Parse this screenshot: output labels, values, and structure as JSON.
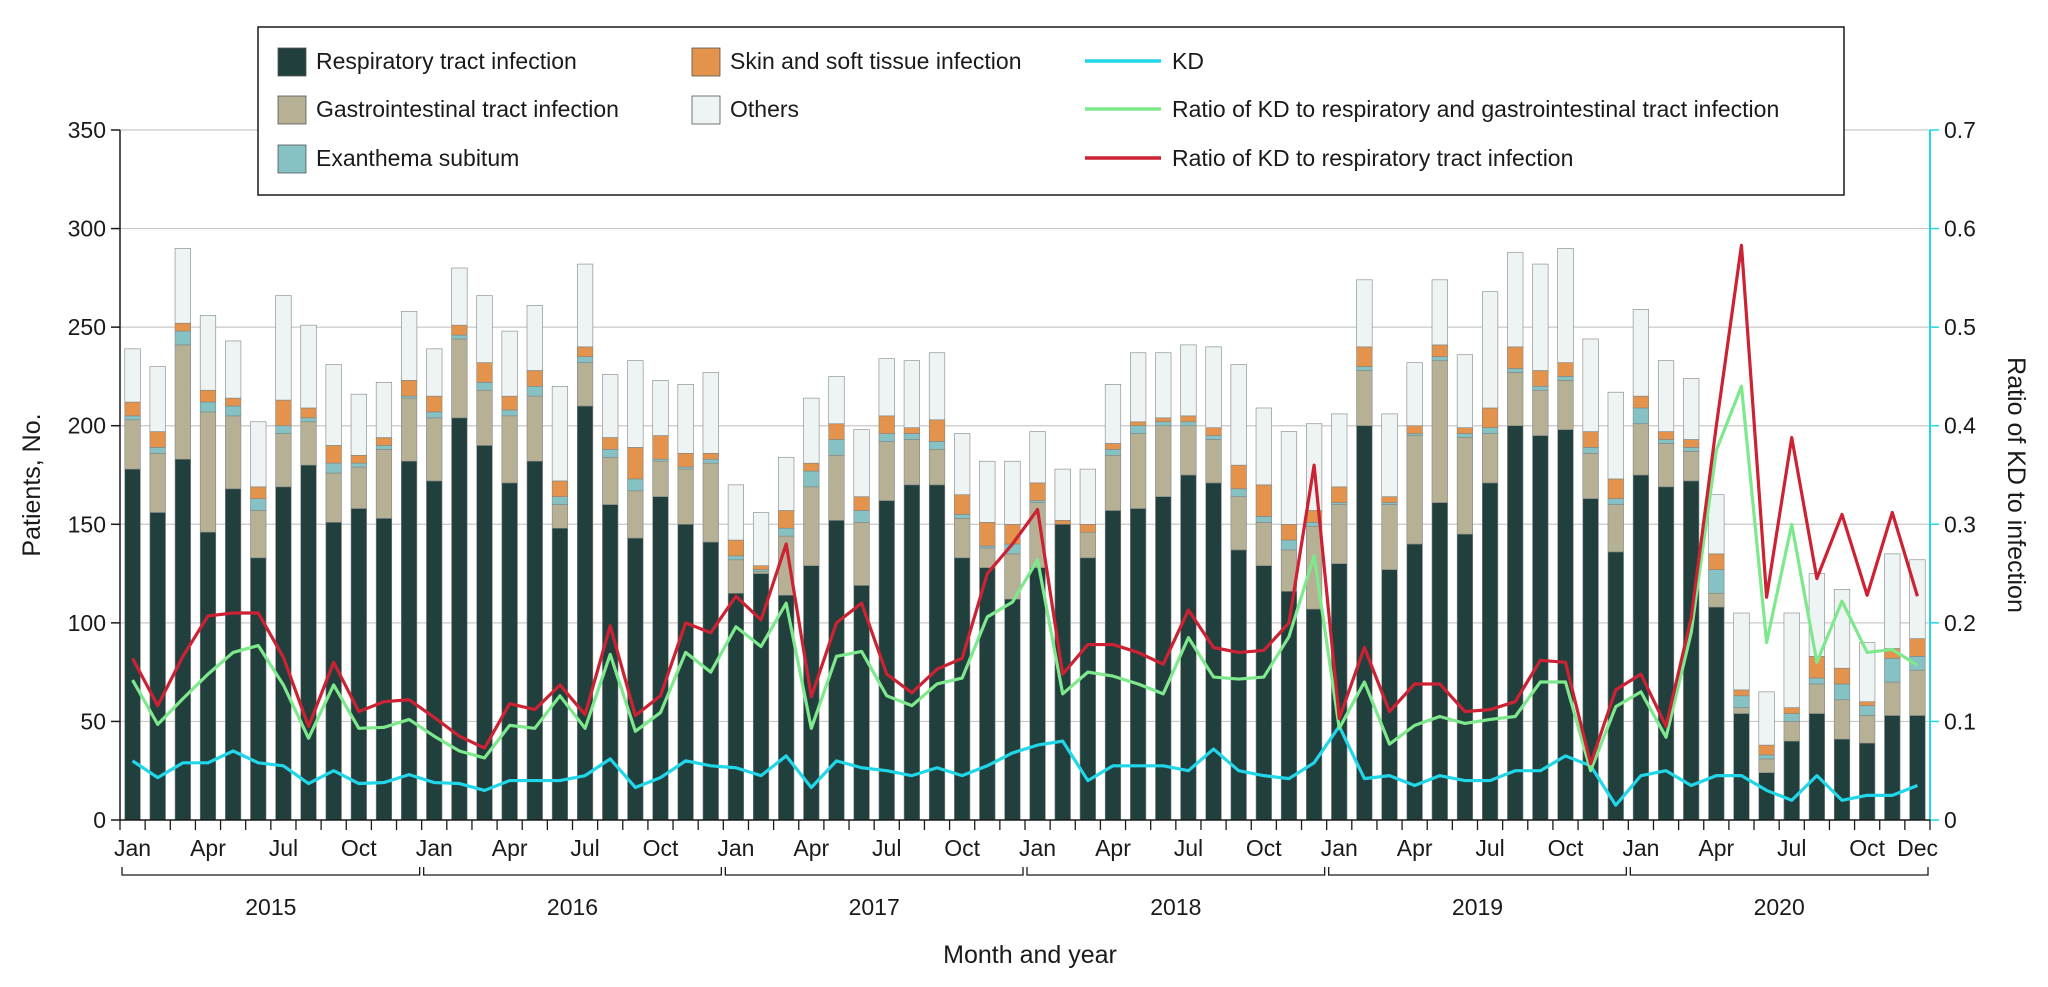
{
  "chart_data": {
    "type": "bar",
    "stacked": true,
    "xlabel": "Month and year",
    "ylabel": "Patients, No.",
    "ylabel_right": "Ratio of KD to infection",
    "ylim": [
      0,
      350
    ],
    "ylim_right": [
      0,
      0.7
    ],
    "yticks": [
      "0",
      "50",
      "100",
      "150",
      "200",
      "250",
      "300",
      "350"
    ],
    "yticks_right": [
      "0",
      "0.1",
      "0.2",
      "0.3",
      "0.4",
      "0.5",
      "0.6",
      "0.7"
    ],
    "month_ticks": [
      {
        "index": 0,
        "label": "Jan"
      },
      {
        "index": 3,
        "label": "Apr"
      },
      {
        "index": 6,
        "label": "Jul"
      },
      {
        "index": 9,
        "label": "Oct"
      },
      {
        "index": 12,
        "label": "Jan"
      },
      {
        "index": 15,
        "label": "Apr"
      },
      {
        "index": 18,
        "label": "Jul"
      },
      {
        "index": 21,
        "label": "Oct"
      },
      {
        "index": 24,
        "label": "Jan"
      },
      {
        "index": 27,
        "label": "Apr"
      },
      {
        "index": 30,
        "label": "Jul"
      },
      {
        "index": 33,
        "label": "Oct"
      },
      {
        "index": 36,
        "label": "Jan"
      },
      {
        "index": 39,
        "label": "Apr"
      },
      {
        "index": 42,
        "label": "Jul"
      },
      {
        "index": 45,
        "label": "Oct"
      },
      {
        "index": 48,
        "label": "Jan"
      },
      {
        "index": 51,
        "label": "Apr"
      },
      {
        "index": 54,
        "label": "Jul"
      },
      {
        "index": 57,
        "label": "Oct"
      },
      {
        "index": 60,
        "label": "Jan"
      },
      {
        "index": 63,
        "label": "Apr"
      },
      {
        "index": 66,
        "label": "Jul"
      },
      {
        "index": 69,
        "label": "Oct"
      },
      {
        "index": 71,
        "label": "Dec"
      }
    ],
    "years": [
      {
        "label": "2015",
        "start": 0,
        "end": 11
      },
      {
        "label": "2016",
        "start": 12,
        "end": 23
      },
      {
        "label": "2017",
        "start": 24,
        "end": 35
      },
      {
        "label": "2018",
        "start": 36,
        "end": 47
      },
      {
        "label": "2019",
        "start": 48,
        "end": 59
      },
      {
        "label": "2020",
        "start": 60,
        "end": 71
      }
    ],
    "legend": {
      "resp": "Respiratory tract infection",
      "gi": "Gastrointestinal tract infection",
      "exanthema": "Exanthema subitum",
      "skin": "Skin and soft tissue infection",
      "others": "Others",
      "kd": "KD",
      "ratio_rg": "Ratio of KD to respiratory and gastrointestinal tract infection",
      "ratio_r": "Ratio of KD to respiratory tract infection"
    },
    "colors": {
      "resp": "#213f3c",
      "gi": "#b6b195",
      "exanthema": "#86c1c3",
      "skin": "#e3934b",
      "others": "#eef3f3",
      "kd": "#21d6e8",
      "ratio_rg": "#7ee88c",
      "ratio_r": "#cc2233",
      "grid": "#c8c8c8",
      "right_axis": "#21d6e8"
    },
    "series": [
      {
        "name": "Respiratory tract infection",
        "key": "resp",
        "values": [
          178,
          156,
          183,
          146,
          168,
          133,
          169,
          180,
          151,
          158,
          153,
          182,
          172,
          204,
          190,
          171,
          182,
          148,
          210,
          160,
          143,
          164,
          150,
          141,
          115,
          125,
          114,
          129,
          152,
          119,
          162,
          170,
          170,
          133,
          128,
          112,
          128,
          150,
          133,
          157,
          158,
          164,
          175,
          171,
          137,
          129,
          116,
          107,
          130,
          200,
          127,
          140,
          161,
          145,
          171,
          200,
          195,
          198,
          163,
          136,
          175,
          169,
          172,
          108,
          54,
          24,
          40,
          54,
          41,
          39,
          53,
          53
        ]
      },
      {
        "name": "Gastrointestinal tract infection",
        "key": "gi",
        "values": [
          25,
          30,
          58,
          61,
          37,
          24,
          27,
          22,
          25,
          21,
          35,
          32,
          32,
          40,
          28,
          34,
          33,
          12,
          22,
          24,
          24,
          18,
          28,
          40,
          17,
          1,
          30,
          40,
          33,
          32,
          30,
          23,
          18,
          20,
          10,
          23,
          33,
          0,
          13,
          28,
          38,
          36,
          25,
          22,
          27,
          22,
          21,
          42,
          30,
          28,
          33,
          55,
          72,
          49,
          25,
          27,
          23,
          25,
          23,
          24,
          26,
          22,
          15,
          7,
          3,
          7,
          10,
          15,
          20,
          14,
          17,
          23
        ]
      },
      {
        "name": "Exanthema subitum",
        "key": "exanthema",
        "values": [
          2,
          3,
          7,
          5,
          5,
          6,
          4,
          2,
          5,
          2,
          2,
          1,
          3,
          2,
          4,
          3,
          5,
          4,
          3,
          4,
          6,
          1,
          1,
          2,
          2,
          1,
          4,
          8,
          8,
          6,
          4,
          3,
          4,
          2,
          1,
          5,
          1,
          0,
          0,
          3,
          4,
          2,
          2,
          2,
          4,
          3,
          5,
          2,
          1,
          2,
          1,
          1,
          2,
          2,
          3,
          2,
          2,
          2,
          3,
          3,
          8,
          2,
          2,
          12,
          6,
          2,
          4,
          3,
          8,
          5,
          12,
          7
        ]
      },
      {
        "name": "Skin and soft tissue infection",
        "key": "skin",
        "values": [
          7,
          8,
          4,
          6,
          4,
          6,
          13,
          5,
          9,
          4,
          4,
          8,
          8,
          5,
          10,
          7,
          8,
          8,
          5,
          6,
          16,
          12,
          7,
          3,
          8,
          2,
          9,
          4,
          8,
          7,
          9,
          3,
          11,
          10,
          12,
          10,
          9,
          2,
          4,
          3,
          2,
          2,
          3,
          4,
          12,
          16,
          8,
          6,
          8,
          10,
          3,
          4,
          6,
          3,
          10,
          11,
          8,
          7,
          8,
          10,
          6,
          4,
          4,
          8,
          3,
          5,
          3,
          11,
          8,
          2,
          5,
          9
        ]
      },
      {
        "name": "Others",
        "key": "others",
        "values": [
          27,
          33,
          38,
          38,
          29,
          33,
          53,
          42,
          41,
          31,
          28,
          35,
          24,
          29,
          34,
          33,
          33,
          48,
          42,
          32,
          44,
          28,
          35,
          41,
          28,
          27,
          27,
          33,
          24,
          34,
          29,
          34,
          34,
          31,
          31,
          32,
          26,
          26,
          28,
          30,
          35,
          33,
          36,
          41,
          51,
          39,
          47,
          44,
          37,
          34,
          42,
          32,
          33,
          37,
          59,
          48,
          54,
          58,
          47,
          44,
          44,
          36,
          31,
          30,
          39,
          27,
          48,
          42,
          40,
          30,
          48,
          40
        ]
      }
    ],
    "lines": [
      {
        "name": "KD",
        "key": "kd",
        "axis": "right",
        "values": [
          0.06,
          0.043,
          0.058,
          0.058,
          0.07,
          0.058,
          0.055,
          0.037,
          0.05,
          0.037,
          0.038,
          0.046,
          0.038,
          0.037,
          0.03,
          0.04,
          0.04,
          0.04,
          0.045,
          0.062,
          0.033,
          0.043,
          0.06,
          0.055,
          0.053,
          0.045,
          0.065,
          0.033,
          0.06,
          0.053,
          0.05,
          0.045,
          0.053,
          0.045,
          0.055,
          0.068,
          0.076,
          0.08,
          0.04,
          0.055,
          0.055,
          0.055,
          0.05,
          0.072,
          0.05,
          0.045,
          0.042,
          0.058,
          0.095,
          0.042,
          0.045,
          0.035,
          0.045,
          0.04,
          0.04,
          0.05,
          0.05,
          0.065,
          0.055,
          0.015,
          0.045,
          0.05,
          0.035,
          0.045,
          0.045,
          0.03,
          0.02,
          0.045,
          0.02,
          0.025,
          0.025,
          0.035
        ]
      },
      {
        "name": "Ratio of KD to respiratory and gastrointestinal tract infection",
        "key": "ratio_rg",
        "axis": "right",
        "values": [
          0.142,
          0.097,
          0.123,
          0.148,
          0.17,
          0.177,
          0.137,
          0.083,
          0.137,
          0.093,
          0.094,
          0.102,
          0.085,
          0.07,
          0.063,
          0.096,
          0.093,
          0.126,
          0.093,
          0.168,
          0.09,
          0.109,
          0.17,
          0.15,
          0.196,
          0.176,
          0.22,
          0.093,
          0.166,
          0.171,
          0.126,
          0.116,
          0.138,
          0.144,
          0.206,
          0.221,
          0.264,
          0.128,
          0.15,
          0.146,
          0.138,
          0.128,
          0.185,
          0.145,
          0.143,
          0.145,
          0.186,
          0.268,
          0.093,
          0.14,
          0.077,
          0.096,
          0.105,
          0.098,
          0.102,
          0.105,
          0.14,
          0.14,
          0.05,
          0.115,
          0.13,
          0.084,
          0.19,
          0.375,
          0.44,
          0.18,
          0.3,
          0.16,
          0.222,
          0.17,
          0.173,
          0.157
        ]
      },
      {
        "name": "Ratio of KD to respiratory tract infection",
        "key": "ratio_r",
        "axis": "right",
        "values": [
          0.164,
          0.116,
          0.166,
          0.207,
          0.21,
          0.21,
          0.165,
          0.095,
          0.16,
          0.11,
          0.12,
          0.122,
          0.104,
          0.085,
          0.073,
          0.118,
          0.112,
          0.137,
          0.107,
          0.197,
          0.106,
          0.126,
          0.2,
          0.19,
          0.227,
          0.203,
          0.28,
          0.125,
          0.2,
          0.22,
          0.148,
          0.129,
          0.153,
          0.164,
          0.25,
          0.28,
          0.315,
          0.148,
          0.178,
          0.178,
          0.17,
          0.158,
          0.213,
          0.175,
          0.17,
          0.172,
          0.2,
          0.36,
          0.103,
          0.175,
          0.11,
          0.138,
          0.138,
          0.11,
          0.112,
          0.12,
          0.162,
          0.16,
          0.057,
          0.132,
          0.148,
          0.095,
          0.205,
          0.4,
          0.583,
          0.226,
          0.388,
          0.245,
          0.31,
          0.228,
          0.312,
          0.227
        ]
      }
    ]
  }
}
